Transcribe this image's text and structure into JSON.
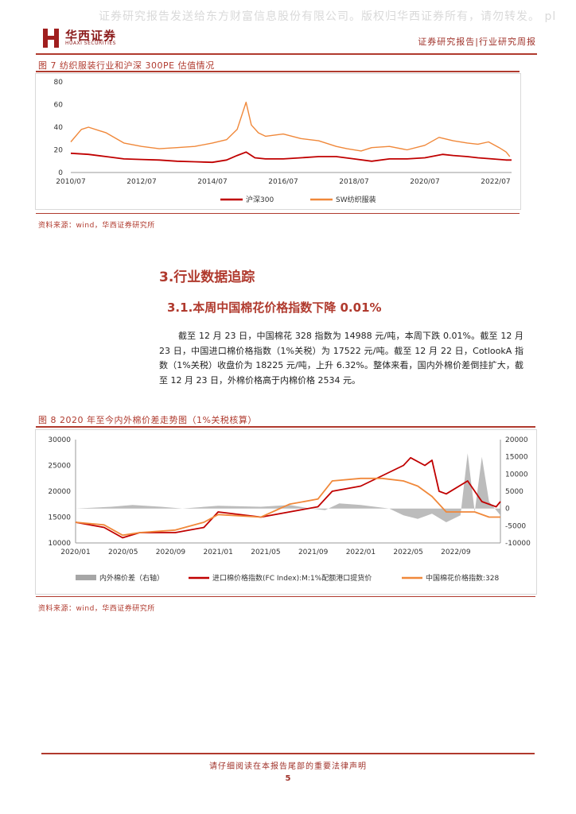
{
  "header": {
    "watermark": "证券研究报告发送给东方财富信息股份有限公司。版权归华西证券所有，请勿转发。 pl",
    "logo_cn": "华西证券",
    "logo_en": "HUAXI SECURITIES",
    "right": "证券研究报告|行业研究周报"
  },
  "figure7": {
    "caption": "图 7  纺织服装行业和沪深 300PE 估值情况",
    "source": "资料来源：wind，华西证券研究所",
    "chart_data": {
      "type": "line",
      "title": "",
      "categories": [
        "2010/07",
        "2012/07",
        "2014/07",
        "2016/07",
        "2018/07",
        "2020/07",
        "2022/07"
      ],
      "ylim": [
        0,
        80
      ],
      "yticks": [
        "0",
        "20",
        "40",
        "60",
        "80"
      ],
      "series": [
        {
          "name": "沪深300",
          "color": "#c00000",
          "x": [
            2010.5,
            2011.0,
            2011.5,
            2012.0,
            2012.5,
            2013.0,
            2013.5,
            2014.0,
            2014.5,
            2014.9,
            2015.2,
            2015.45,
            2015.7,
            2016.0,
            2016.5,
            2017.0,
            2017.5,
            2018.0,
            2018.5,
            2019.0,
            2019.5,
            2020.0,
            2020.5,
            2021.0,
            2021.3,
            2021.7,
            2022.0,
            2022.4,
            2022.8,
            2022.95
          ],
          "values": [
            17,
            16,
            14,
            12,
            11.5,
            11,
            10,
            9.5,
            9,
            11,
            15,
            18,
            13,
            12,
            12,
            13,
            14,
            14,
            12,
            10,
            12,
            12,
            13,
            16,
            15,
            14,
            13,
            12,
            11,
            11
          ]
        },
        {
          "name": "SW纺织服装",
          "color": "#f0883a",
          "x": [
            2010.5,
            2010.8,
            2011.0,
            2011.5,
            2012.0,
            2012.5,
            2013.0,
            2013.5,
            2014.0,
            2014.5,
            2014.9,
            2015.2,
            2015.45,
            2015.6,
            2015.8,
            2016.0,
            2016.5,
            2017.0,
            2017.5,
            2018.0,
            2018.3,
            2018.7,
            2019.0,
            2019.5,
            2020.0,
            2020.5,
            2020.9,
            2021.3,
            2021.7,
            2022.0,
            2022.3,
            2022.6,
            2022.8,
            2022.9
          ],
          "values": [
            27,
            38,
            40,
            35,
            26,
            23,
            21,
            22,
            23,
            26,
            29,
            38,
            62,
            42,
            35,
            32,
            34,
            30,
            28,
            23,
            21,
            19,
            22,
            23,
            20,
            24,
            31,
            28,
            26,
            25,
            27,
            22,
            18,
            14
          ]
        }
      ]
    }
  },
  "section": {
    "title": "3.行业数据追踪",
    "subtitle": "3.1.本周中国棉花价格指数下降 0.01%",
    "paragraph": "截至 12 月 23 日，中国棉花 328 指数为 14988 元/吨，本周下跌 0.01%。截至 12 月 23 日，中国进口棉价格指数（1%关税）为 17522 元/吨。截至 12 月 22 日，CotlookA 指数（1%关税）收盘价为 18225 元/吨，上升 6.32%。整体来看，国内外棉价差倒挂扩大，截至 12 月 23 日，外棉价格高于内棉价格 2534 元。"
  },
  "figure8": {
    "caption": "图 8  2020 年至今内外棉价差走势图（1%关税核算）",
    "source": "资料来源：wind，华西证券研究所",
    "chart_data": {
      "type": "line",
      "categories": [
        "2020/01",
        "2020/05",
        "2020/09",
        "2021/01",
        "2021/05",
        "2021/09",
        "2022/01",
        "2022/05",
        "2022/09"
      ],
      "ylim_left": [
        10000,
        30000
      ],
      "ylim_right": [
        -10000,
        20000
      ],
      "yticks_left": [
        "10000",
        "15000",
        "20000",
        "25000",
        "30000"
      ],
      "yticks_right": [
        "-10000",
        "-5000",
        "0",
        "5000",
        "10000",
        "15000",
        "20000"
      ],
      "series": [
        {
          "name": "内外棉价差（右轴）",
          "type": "area",
          "axis": "right",
          "color": "#a6a6a6",
          "x": [
            2020.0,
            2020.25,
            2020.4,
            2020.6,
            2020.75,
            2021.0,
            2021.3,
            2021.5,
            2021.65,
            2021.75,
            2021.85,
            2022.0,
            2022.2,
            2022.3,
            2022.4,
            2022.5,
            2022.6,
            2022.7,
            2022.75,
            2022.8,
            2022.85,
            2022.9,
            2022.98
          ],
          "values": [
            0,
            500,
            1000,
            500,
            0,
            800,
            500,
            1000,
            0,
            -500,
            1500,
            1000,
            0,
            -2000,
            -3000,
            -1500,
            -4000,
            -2000,
            16000,
            -1000,
            15000,
            2000,
            -2000
          ]
        },
        {
          "name": "进口棉价格指数(FC Index):M:1%配额港口提货价",
          "axis": "left",
          "color": "#c00000",
          "x": [
            2020.0,
            2020.2,
            2020.33,
            2020.45,
            2020.7,
            2020.9,
            2021.0,
            2021.3,
            2021.5,
            2021.7,
            2021.8,
            2022.0,
            2022.15,
            2022.3,
            2022.35,
            2022.45,
            2022.5,
            2022.55,
            2022.6,
            2022.75,
            2022.85,
            2022.95,
            2022.98
          ],
          "values": [
            14000,
            13000,
            11000,
            12000,
            12000,
            13000,
            16000,
            15000,
            16000,
            17000,
            20000,
            21000,
            23000,
            25000,
            26500,
            25000,
            26000,
            20000,
            19500,
            22000,
            18000,
            17000,
            18000
          ]
        },
        {
          "name": "中国棉花价格指数:328",
          "axis": "left",
          "color": "#f0883a",
          "x": [
            2020.0,
            2020.2,
            2020.33,
            2020.45,
            2020.7,
            2020.9,
            2021.0,
            2021.3,
            2021.5,
            2021.7,
            2021.8,
            2022.0,
            2022.15,
            2022.3,
            2022.4,
            2022.5,
            2022.6,
            2022.7,
            2022.8,
            2022.9,
            2022.98
          ],
          "values": [
            14000,
            13500,
            11500,
            12000,
            12500,
            14000,
            15500,
            15000,
            17500,
            18500,
            22000,
            22500,
            22500,
            22000,
            21000,
            19000,
            16000,
            16000,
            16000,
            15000,
            15000
          ]
        }
      ]
    }
  },
  "footer": {
    "notice": "请仔细阅读在本报告尾部的重要法律声明",
    "page": "5"
  }
}
